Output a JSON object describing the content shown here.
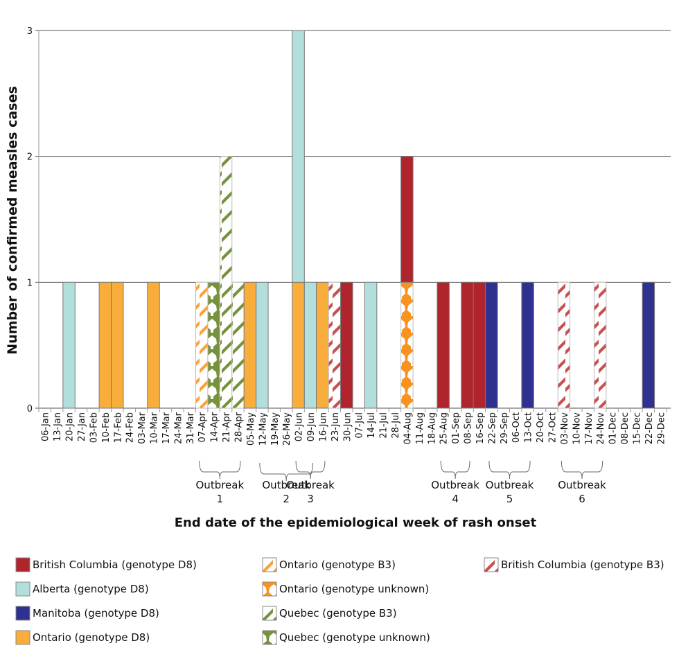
{
  "chart_data": {
    "type": "bar",
    "stacked": true,
    "title": "",
    "ylabel": "Number of confirmed measles cases",
    "xlabel": "End date of the epidemiological week of  rash onset",
    "ylim": [
      0,
      3
    ],
    "yticks": [
      0,
      1,
      2,
      3
    ],
    "grid": true,
    "legend_position": "bottom",
    "categories": [
      "06-Jan",
      "13-Jan",
      "20-Jan",
      "27-Jan",
      "03-Feb",
      "10-Feb",
      "17-Feb",
      "24-Feb",
      "03-Mar",
      "10-Mar",
      "17-Mar",
      "24-Mar",
      "31-Mar",
      "07-Apr",
      "14-Apr",
      "21-Apr",
      "28-Apr",
      "05-May",
      "12-May",
      "19-May",
      "26-May",
      "02-Jun",
      "09-Jun",
      "16-Jun",
      "23-Jun",
      "30-Jun",
      "07-Jul",
      "14-Jul",
      "21-Jul",
      "28-Jul",
      "04-Aug",
      "11-Aug",
      "18-Aug",
      "25-Aug",
      "01-Sep",
      "08-Sep",
      "16-Sep",
      "22-Sep",
      "29-Sep",
      "06-Oct",
      "13-Oct",
      "20-Oct",
      "27-Oct",
      "03-Nov",
      "10-Nov",
      "17-Nov",
      "24-Nov",
      "01-Dec",
      "08-Dec",
      "15-Dec",
      "22-Dec",
      "29-Dec"
    ],
    "series": [
      {
        "name": "British Columbia (genotype D8)",
        "color": "#b0252d",
        "pattern": "solid",
        "values": [
          0,
          0,
          0,
          0,
          0,
          0,
          0,
          0,
          0,
          0,
          0,
          0,
          0,
          0,
          0,
          0,
          0,
          0,
          0,
          0,
          0,
          0,
          0,
          0,
          0,
          1,
          0,
          0,
          0,
          0,
          1,
          0,
          0,
          1,
          0,
          1,
          1,
          0,
          0,
          0,
          0,
          0,
          0,
          0,
          0,
          0,
          0,
          0,
          0,
          0,
          0,
          0
        ]
      },
      {
        "name": "Alberta (genotype D8)",
        "color": "#b2dfdb",
        "pattern": "solid",
        "values": [
          0,
          0,
          1,
          0,
          0,
          0,
          0,
          0,
          0,
          0,
          0,
          0,
          0,
          0,
          0,
          0,
          0,
          0,
          1,
          0,
          0,
          2,
          1,
          0,
          0,
          0,
          0,
          1,
          0,
          0,
          0,
          0,
          0,
          0,
          0,
          0,
          0,
          0,
          0,
          0,
          0,
          0,
          0,
          0,
          0,
          0,
          0,
          0,
          0,
          0,
          0,
          0
        ]
      },
      {
        "name": "Manitoba (genotype D8)",
        "color": "#2e3190",
        "pattern": "solid",
        "values": [
          0,
          0,
          0,
          0,
          0,
          0,
          0,
          0,
          0,
          0,
          0,
          0,
          0,
          0,
          0,
          0,
          0,
          0,
          0,
          0,
          0,
          0,
          0,
          0,
          0,
          0,
          0,
          0,
          0,
          0,
          0,
          0,
          0,
          0,
          0,
          0,
          0,
          1,
          0,
          0,
          1,
          0,
          0,
          0,
          0,
          0,
          0,
          0,
          0,
          0,
          1,
          0
        ]
      },
      {
        "name": "Ontario (genotype D8)",
        "color": "#f9ae3b",
        "pattern": "solid",
        "values": [
          0,
          0,
          0,
          0,
          0,
          1,
          1,
          0,
          0,
          1,
          0,
          0,
          0,
          0,
          0,
          0,
          0,
          1,
          0,
          0,
          0,
          1,
          0,
          1,
          0,
          0,
          0,
          0,
          0,
          0,
          0,
          0,
          0,
          0,
          0,
          0,
          0,
          0,
          0,
          0,
          0,
          0,
          0,
          0,
          0,
          0,
          0,
          0,
          0,
          0,
          0,
          0
        ]
      },
      {
        "name": "Ontario (genotype B3)",
        "color": "#f9a23b",
        "pattern": "diagonal",
        "values": [
          0,
          0,
          0,
          0,
          0,
          0,
          0,
          0,
          0,
          0,
          0,
          0,
          0,
          1,
          0,
          0,
          0,
          0,
          0,
          0,
          0,
          0,
          0,
          0,
          0,
          0,
          0,
          0,
          0,
          0,
          0,
          0,
          0,
          0,
          0,
          0,
          0,
          0,
          0,
          0,
          0,
          0,
          0,
          0,
          0,
          0,
          0,
          0,
          0,
          0,
          0,
          0
        ]
      },
      {
        "name": "Ontario (genotype unknown)",
        "color": "#f7931e",
        "pattern": "goblet",
        "values": [
          0,
          0,
          0,
          0,
          0,
          0,
          0,
          0,
          0,
          0,
          0,
          0,
          0,
          0,
          0,
          0,
          0,
          0,
          0,
          0,
          0,
          0,
          0,
          0,
          0,
          0,
          0,
          0,
          0,
          0,
          1,
          0,
          0,
          0,
          0,
          0,
          0,
          0,
          0,
          0,
          0,
          0,
          0,
          0,
          0,
          0,
          0,
          0,
          0,
          0,
          0,
          0
        ]
      },
      {
        "name": "Quebec (genotype B3)",
        "color": "#76923c",
        "pattern": "diagonal",
        "values": [
          0,
          0,
          0,
          0,
          0,
          0,
          0,
          0,
          0,
          0,
          0,
          0,
          0,
          0,
          0,
          2,
          1,
          0,
          0,
          0,
          0,
          0,
          0,
          0,
          0,
          0,
          0,
          0,
          0,
          0,
          0,
          0,
          0,
          0,
          0,
          0,
          0,
          0,
          0,
          0,
          0,
          0,
          0,
          0,
          0,
          0,
          0,
          0,
          0,
          0,
          0,
          0
        ]
      },
      {
        "name": "Quebec (genotype unknown)",
        "color": "#76923c",
        "pattern": "goblet",
        "values": [
          0,
          0,
          0,
          0,
          0,
          0,
          0,
          0,
          0,
          0,
          0,
          0,
          0,
          0,
          1,
          0,
          0,
          0,
          0,
          0,
          0,
          0,
          0,
          0,
          0,
          0,
          0,
          0,
          0,
          0,
          0,
          0,
          0,
          0,
          0,
          0,
          0,
          0,
          0,
          0,
          0,
          0,
          0,
          0,
          0,
          0,
          0,
          0,
          0,
          0,
          0,
          0
        ]
      },
      {
        "name": "British Columbia (genotype B3)",
        "color": "#c9504f",
        "pattern": "diagonal",
        "values": [
          0,
          0,
          0,
          0,
          0,
          0,
          0,
          0,
          0,
          0,
          0,
          0,
          0,
          0,
          0,
          0,
          0,
          0,
          0,
          0,
          0,
          0,
          0,
          0,
          1,
          0,
          0,
          0,
          0,
          0,
          0,
          0,
          0,
          0,
          0,
          0,
          0,
          0,
          0,
          0,
          0,
          0,
          0,
          1,
          0,
          0,
          1,
          0,
          0,
          0,
          0,
          0
        ]
      }
    ],
    "stack_order_bottom_to_top": [
      "Ontario (genotype D8)",
      "Ontario (genotype unknown)",
      "Ontario (genotype B3)",
      "Quebec (genotype unknown)",
      "Quebec (genotype B3)",
      "British Columbia (genotype B3)",
      "British Columbia (genotype D8)",
      "Alberta (genotype D8)",
      "Manitoba (genotype D8)"
    ],
    "annotations": [
      {
        "label": "Outbreak",
        "number": "1",
        "from": "07-Apr",
        "to": "28-Apr"
      },
      {
        "label": "Outbreak",
        "number": "2",
        "from": "12-May",
        "to": "09-Jun"
      },
      {
        "label": "Outbreak",
        "number": "3",
        "from": "02-Jun",
        "to": "16-Jun"
      },
      {
        "label": "Outbreak",
        "number": "4",
        "from": "25-Aug",
        "to": "08-Sep"
      },
      {
        "label": "Outbreak",
        "number": "5",
        "from": "22-Sep",
        "to": "13-Oct"
      },
      {
        "label": "Outbreak",
        "number": "6",
        "from": "03-Nov",
        "to": "24-Nov"
      }
    ]
  },
  "legend": {
    "columns": [
      [
        "British Columbia (genotype D8)",
        "Alberta (genotype D8)",
        "Manitoba (genotype D8)",
        "Ontario (genotype D8)"
      ],
      [
        "Ontario (genotype B3)",
        "Ontario (genotype unknown)",
        "Quebec (genotype B3)",
        "Quebec (genotype unknown)"
      ],
      [
        "British Columbia (genotype B3)"
      ]
    ]
  }
}
